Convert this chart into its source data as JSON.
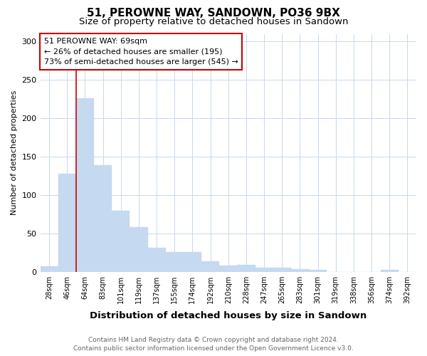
{
  "title": "51, PEROWNE WAY, SANDOWN, PO36 9BX",
  "subtitle": "Size of property relative to detached houses in Sandown",
  "xlabel": "Distribution of detached houses by size in Sandown",
  "ylabel": "Number of detached properties",
  "bar_labels": [
    "28sqm",
    "46sqm",
    "64sqm",
    "83sqm",
    "101sqm",
    "119sqm",
    "137sqm",
    "155sqm",
    "174sqm",
    "192sqm",
    "210sqm",
    "228sqm",
    "247sqm",
    "265sqm",
    "283sqm",
    "301sqm",
    "319sqm",
    "338sqm",
    "356sqm",
    "374sqm",
    "392sqm"
  ],
  "bar_values": [
    7,
    128,
    226,
    139,
    79,
    58,
    31,
    26,
    26,
    14,
    8,
    9,
    5,
    5,
    3,
    2,
    0,
    0,
    0,
    2,
    0
  ],
  "bar_color": "#c5d9f0",
  "bar_edgecolor": "#c5d9f0",
  "vline_x": 1.5,
  "vline_color": "#cc0000",
  "annotation_text": "51 PEROWNE WAY: 69sqm\n← 26% of detached houses are smaller (195)\n73% of semi-detached houses are larger (545) →",
  "annotation_box_facecolor": "white",
  "annotation_box_edgecolor": "#cc0000",
  "ylim": [
    0,
    310
  ],
  "yticks": [
    0,
    50,
    100,
    150,
    200,
    250,
    300
  ],
  "footer_line1": "Contains HM Land Registry data © Crown copyright and database right 2024.",
  "footer_line2": "Contains public sector information licensed under the Open Government Licence v3.0.",
  "background_color": "#ffffff",
  "grid_color": "#c8d8ec",
  "title_fontsize": 11,
  "subtitle_fontsize": 9.5,
  "xlabel_fontsize": 9.5,
  "ylabel_fontsize": 8,
  "tick_fontsize": 7,
  "footer_fontsize": 6.5,
  "annot_fontsize": 8
}
